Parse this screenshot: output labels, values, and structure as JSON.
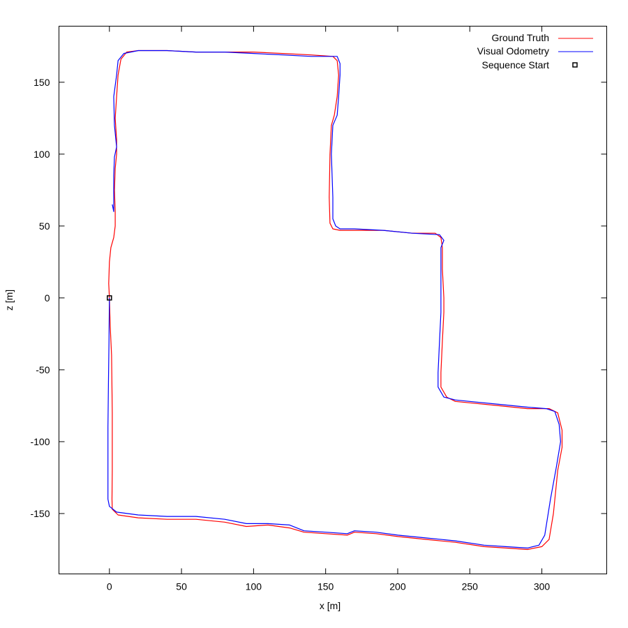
{
  "chart_data": {
    "type": "line",
    "title": "",
    "xlabel": "x [m]",
    "ylabel": "z [m]",
    "xlim": [
      -35,
      345
    ],
    "ylim": [
      -192,
      189
    ],
    "grid": false,
    "legend_position": "top-right",
    "xticks": [
      0,
      50,
      100,
      150,
      200,
      250,
      300
    ],
    "yticks": [
      150,
      100,
      50,
      0,
      -50,
      -100,
      -150
    ],
    "series": [
      {
        "name": "Ground Truth",
        "color": "#ff0000",
        "points": [
          [
            0,
            0
          ],
          [
            0.6,
            -20
          ],
          [
            1.5,
            -40
          ],
          [
            2,
            -80
          ],
          [
            2,
            -120
          ],
          [
            1.8,
            -140
          ],
          [
            2,
            -147
          ],
          [
            6,
            -151
          ],
          [
            20,
            -153
          ],
          [
            40,
            -154
          ],
          [
            60,
            -154
          ],
          [
            80,
            -156
          ],
          [
            95,
            -159
          ],
          [
            110,
            -158
          ],
          [
            125,
            -160
          ],
          [
            135,
            -163
          ],
          [
            150,
            -164
          ],
          [
            165,
            -165
          ],
          [
            170,
            -163
          ],
          [
            185,
            -164
          ],
          [
            200,
            -166
          ],
          [
            220,
            -168
          ],
          [
            240,
            -170
          ],
          [
            260,
            -173
          ],
          [
            275,
            -174
          ],
          [
            290,
            -175
          ],
          [
            300,
            -173
          ],
          [
            305,
            -168
          ],
          [
            308,
            -150
          ],
          [
            311,
            -120
          ],
          [
            314,
            -104
          ],
          [
            314,
            -92
          ],
          [
            311,
            -80
          ],
          [
            305,
            -77
          ],
          [
            290,
            -77
          ],
          [
            270,
            -75
          ],
          [
            250,
            -73
          ],
          [
            240,
            -72
          ],
          [
            234,
            -69
          ],
          [
            230,
            -62
          ],
          [
            230,
            -52
          ],
          [
            231,
            -30
          ],
          [
            232,
            -10
          ],
          [
            232,
            0
          ],
          [
            231,
            20
          ],
          [
            231,
            35
          ],
          [
            230,
            42
          ],
          [
            226,
            45
          ],
          [
            210,
            45
          ],
          [
            190,
            47
          ],
          [
            170,
            47
          ],
          [
            160,
            47
          ],
          [
            155,
            48
          ],
          [
            153,
            52
          ],
          [
            152.5,
            70
          ],
          [
            153,
            100
          ],
          [
            154,
            120
          ],
          [
            156,
            127
          ],
          [
            158,
            140
          ],
          [
            159,
            155
          ],
          [
            158,
            165
          ],
          [
            155,
            168
          ],
          [
            140,
            169
          ],
          [
            120,
            170
          ],
          [
            100,
            171
          ],
          [
            80,
            171
          ],
          [
            60,
            171
          ],
          [
            40,
            172
          ],
          [
            20,
            172
          ],
          [
            12,
            171
          ],
          [
            8,
            166
          ],
          [
            6,
            155
          ],
          [
            5,
            140
          ],
          [
            4,
            125
          ],
          [
            5,
            110
          ],
          [
            5,
            100
          ],
          [
            4,
            90
          ],
          [
            3.5,
            75
          ],
          [
            4,
            60
          ],
          [
            4,
            50
          ],
          [
            3,
            42
          ],
          [
            1,
            35
          ],
          [
            0,
            25
          ],
          [
            -0.5,
            10
          ],
          [
            0,
            0
          ]
        ]
      },
      {
        "name": "Visual Odometry",
        "color": "#0000ff",
        "points": [
          [
            0,
            0
          ],
          [
            -0.3,
            -30
          ],
          [
            -0.7,
            -60
          ],
          [
            -1,
            -90
          ],
          [
            -1,
            -120
          ],
          [
            -1,
            -140
          ],
          [
            0,
            -145
          ],
          [
            5,
            -149
          ],
          [
            20,
            -151
          ],
          [
            40,
            -152
          ],
          [
            60,
            -152
          ],
          [
            80,
            -154
          ],
          [
            95,
            -157
          ],
          [
            110,
            -157
          ],
          [
            125,
            -158
          ],
          [
            135,
            -162
          ],
          [
            150,
            -163
          ],
          [
            165,
            -164
          ],
          [
            170,
            -162
          ],
          [
            185,
            -163
          ],
          [
            200,
            -165
          ],
          [
            220,
            -167
          ],
          [
            240,
            -169
          ],
          [
            260,
            -172
          ],
          [
            275,
            -173
          ],
          [
            290,
            -174
          ],
          [
            298,
            -172
          ],
          [
            302,
            -165
          ],
          [
            306,
            -140
          ],
          [
            310,
            -118
          ],
          [
            313,
            -100
          ],
          [
            312,
            -88
          ],
          [
            309,
            -79
          ],
          [
            303,
            -77
          ],
          [
            290,
            -76
          ],
          [
            270,
            -74
          ],
          [
            250,
            -72
          ],
          [
            240,
            -71
          ],
          [
            232,
            -69
          ],
          [
            228,
            -62
          ],
          [
            228,
            -52
          ],
          [
            229,
            -30
          ],
          [
            230,
            -10
          ],
          [
            230,
            0
          ],
          [
            230,
            20
          ],
          [
            230,
            35
          ],
          [
            232,
            40
          ],
          [
            229,
            44
          ],
          [
            210,
            45
          ],
          [
            190,
            47
          ],
          [
            170,
            48
          ],
          [
            160,
            48
          ],
          [
            157,
            50
          ],
          [
            155,
            55
          ],
          [
            155,
            70
          ],
          [
            154,
            100
          ],
          [
            155,
            120
          ],
          [
            158,
            127
          ],
          [
            159,
            140
          ],
          [
            160,
            155
          ],
          [
            160,
            163
          ],
          [
            158,
            168
          ],
          [
            140,
            168
          ],
          [
            120,
            169
          ],
          [
            100,
            170
          ],
          [
            80,
            171
          ],
          [
            60,
            171
          ],
          [
            40,
            172
          ],
          [
            20,
            172
          ],
          [
            10,
            170
          ],
          [
            6,
            165
          ],
          [
            5,
            155
          ],
          [
            3,
            140
          ],
          [
            3.5,
            120
          ],
          [
            5,
            105
          ],
          [
            3.5,
            98
          ],
          [
            3,
            85
          ],
          [
            3,
            70
          ],
          [
            3,
            60
          ],
          [
            2,
            65
          ]
        ]
      }
    ],
    "markers": [
      {
        "name": "Sequence Start",
        "x": 0,
        "y": 0,
        "shape": "open-square",
        "color": "#000000"
      }
    ],
    "frame_color": "#000000",
    "background": "#ffffff"
  }
}
